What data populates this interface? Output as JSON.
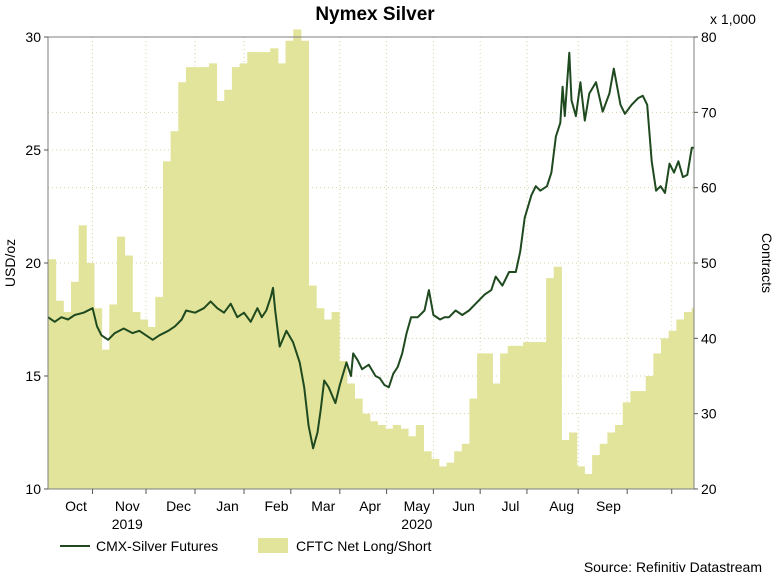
{
  "chart_data": {
    "type": "line+area",
    "title": "Nymex Silver",
    "ylabel_left": "USD/oz",
    "ylabel_right": "Contracts",
    "right_scale_note": "x 1,000",
    "ylim_left": [
      10,
      30
    ],
    "ylim_right": [
      20,
      80
    ],
    "yticks_left": [
      "10",
      "15",
      "20",
      "25",
      "30"
    ],
    "yticks_right": [
      "20",
      "30",
      "40",
      "50",
      "60",
      "70",
      "80"
    ],
    "month_labels": [
      "Oct",
      "Nov",
      "Dec",
      "Jan",
      "Feb",
      "Mar",
      "Apr",
      "May",
      "Jun",
      "Jul",
      "Aug",
      "Sep"
    ],
    "year_labels": [
      "2019",
      "2020"
    ],
    "grid": true,
    "source": "Source: Refinitiv Datastream",
    "series": [
      {
        "name": "CMX-Silver Futures",
        "color": "#1f4a1f",
        "axis": "left",
        "kind": "line",
        "points": [
          [
            0.0,
            17.6
          ],
          [
            0.15,
            17.4
          ],
          [
            0.3,
            17.6
          ],
          [
            0.45,
            17.5
          ],
          [
            0.6,
            17.7
          ],
          [
            0.8,
            17.8
          ],
          [
            1.0,
            18.0
          ],
          [
            1.1,
            17.2
          ],
          [
            1.2,
            16.8
          ],
          [
            1.35,
            16.6
          ],
          [
            1.5,
            16.9
          ],
          [
            1.7,
            17.1
          ],
          [
            1.9,
            16.9
          ],
          [
            2.05,
            17.0
          ],
          [
            2.2,
            16.8
          ],
          [
            2.35,
            16.6
          ],
          [
            2.5,
            16.8
          ],
          [
            2.7,
            17.0
          ],
          [
            2.85,
            17.2
          ],
          [
            3.0,
            17.5
          ],
          [
            3.1,
            17.9
          ],
          [
            3.3,
            17.8
          ],
          [
            3.5,
            18.0
          ],
          [
            3.65,
            18.3
          ],
          [
            3.8,
            18.0
          ],
          [
            3.95,
            17.8
          ],
          [
            4.1,
            18.2
          ],
          [
            4.25,
            17.6
          ],
          [
            4.4,
            17.8
          ],
          [
            4.55,
            17.4
          ],
          [
            4.7,
            18.0
          ],
          [
            4.8,
            17.6
          ],
          [
            4.9,
            17.9
          ],
          [
            5.0,
            18.5
          ],
          [
            5.05,
            18.9
          ],
          [
            5.1,
            17.9
          ],
          [
            5.2,
            16.3
          ],
          [
            5.35,
            17.0
          ],
          [
            5.5,
            16.5
          ],
          [
            5.65,
            15.6
          ],
          [
            5.75,
            14.5
          ],
          [
            5.85,
            12.8
          ],
          [
            5.95,
            11.8
          ],
          [
            6.05,
            12.5
          ],
          [
            6.12,
            13.5
          ],
          [
            6.2,
            14.8
          ],
          [
            6.3,
            14.5
          ],
          [
            6.45,
            13.8
          ],
          [
            6.55,
            14.6
          ],
          [
            6.7,
            15.6
          ],
          [
            6.8,
            15.0
          ],
          [
            6.85,
            16.0
          ],
          [
            6.95,
            15.7
          ],
          [
            7.05,
            15.3
          ],
          [
            7.2,
            15.5
          ],
          [
            7.35,
            15.0
          ],
          [
            7.45,
            14.9
          ],
          [
            7.55,
            14.6
          ],
          [
            7.65,
            14.5
          ],
          [
            7.75,
            15.1
          ],
          [
            7.85,
            15.4
          ],
          [
            7.95,
            16.0
          ],
          [
            8.05,
            16.9
          ],
          [
            8.15,
            17.6
          ],
          [
            8.3,
            17.6
          ],
          [
            8.45,
            17.9
          ],
          [
            8.55,
            18.8
          ],
          [
            8.65,
            17.7
          ],
          [
            8.8,
            17.5
          ],
          [
            8.9,
            17.6
          ],
          [
            9.0,
            17.6
          ],
          [
            9.15,
            17.9
          ],
          [
            9.3,
            17.7
          ],
          [
            9.45,
            17.9
          ],
          [
            9.6,
            18.2
          ],
          [
            9.8,
            18.6
          ],
          [
            9.95,
            18.8
          ],
          [
            10.05,
            19.4
          ],
          [
            10.2,
            19.0
          ],
          [
            10.35,
            19.6
          ],
          [
            10.5,
            19.6
          ],
          [
            10.6,
            20.5
          ],
          [
            10.7,
            22.0
          ],
          [
            10.85,
            23.0
          ],
          [
            10.95,
            23.4
          ],
          [
            11.05,
            23.2
          ],
          [
            11.2,
            23.4
          ],
          [
            11.3,
            24.0
          ],
          [
            11.4,
            25.6
          ],
          [
            11.5,
            26.2
          ],
          [
            11.55,
            27.8
          ],
          [
            11.6,
            26.5
          ],
          [
            11.65,
            27.9
          ],
          [
            11.7,
            29.3
          ],
          [
            11.75,
            27.2
          ],
          [
            11.85,
            26.5
          ],
          [
            11.95,
            28.0
          ],
          [
            12.05,
            26.3
          ],
          [
            12.15,
            27.5
          ],
          [
            12.3,
            28.0
          ],
          [
            12.45,
            26.7
          ],
          [
            12.6,
            27.5
          ],
          [
            12.7,
            28.6
          ],
          [
            12.85,
            27.0
          ],
          [
            12.95,
            26.6
          ],
          [
            13.1,
            27.0
          ],
          [
            13.25,
            27.3
          ],
          [
            13.35,
            27.4
          ],
          [
            13.45,
            27.0
          ],
          [
            13.55,
            24.5
          ],
          [
            13.65,
            23.2
          ],
          [
            13.75,
            23.4
          ],
          [
            13.85,
            23.1
          ],
          [
            13.95,
            24.4
          ],
          [
            14.05,
            24.0
          ],
          [
            14.15,
            24.5
          ],
          [
            14.25,
            23.8
          ],
          [
            14.35,
            23.9
          ],
          [
            14.45,
            25.1
          ],
          [
            14.5,
            25.1
          ]
        ]
      },
      {
        "name": "CFTC Net Long/Short",
        "color": "#e2e49b",
        "axis": "right",
        "kind": "area-step",
        "values": [
          50.5,
          45,
          43.5,
          47.5,
          55,
          50,
          44,
          38.5,
          44.5,
          53.5,
          51,
          43.5,
          42.5,
          41.5,
          45.5,
          63.5,
          67.5,
          74,
          76,
          76,
          76,
          76.5,
          71.5,
          73,
          76,
          76.5,
          78,
          78,
          78,
          78.5,
          76.5,
          79.5,
          81,
          79.5,
          47,
          44,
          42.5,
          43.5,
          37,
          34,
          32,
          30,
          29,
          28.5,
          28,
          28.5,
          28,
          27,
          28.5,
          25,
          24,
          23,
          23.5,
          25,
          26,
          32,
          38,
          38,
          34,
          38,
          39,
          39,
          39.5,
          39.5,
          39.5,
          48,
          49.5,
          26.5,
          27.5,
          23,
          22,
          24.5,
          26,
          27.5,
          28.5,
          31.5,
          33,
          33,
          35,
          38,
          40,
          41,
          42.5,
          43.5,
          44,
          43.5
        ],
        "first_step_x": 0.0,
        "step": 0.172
      }
    ]
  }
}
